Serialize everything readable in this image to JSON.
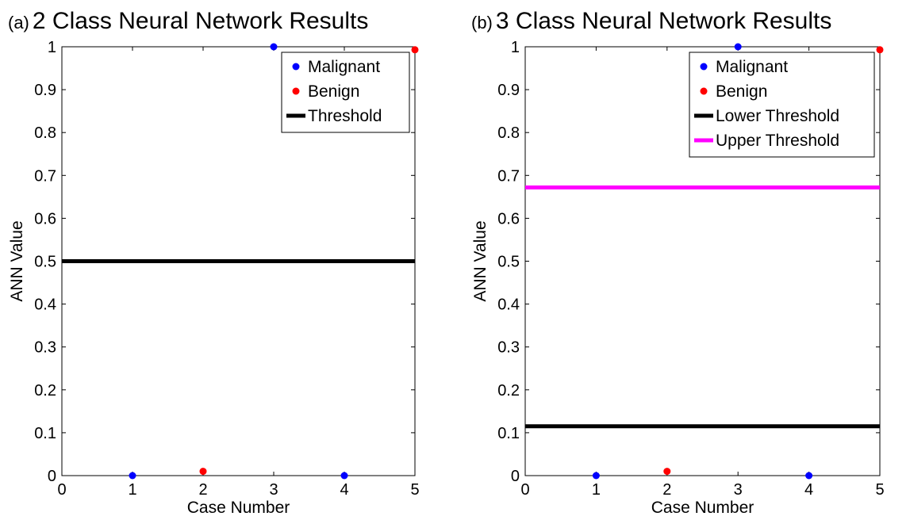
{
  "chart_data": [
    {
      "type": "scatter",
      "panel": "(a)",
      "title": "2 Class Neural Network Results",
      "xlabel": "Case Number",
      "ylabel": "ANN Value",
      "xlim": [
        0,
        5
      ],
      "ylim": [
        0,
        1
      ],
      "xticks": [
        "0",
        "1",
        "2",
        "3",
        "4",
        "5"
      ],
      "yticks": [
        "0",
        "0.1",
        "0.2",
        "0.3",
        "0.4",
        "0.5",
        "0.6",
        "0.7",
        "0.8",
        "0.9",
        "1"
      ],
      "grid": false,
      "legend_position": "top-right",
      "series": [
        {
          "name": "Malignant",
          "kind": "points",
          "color": "#0000ff",
          "x": [
            1,
            3,
            4
          ],
          "y": [
            0.0,
            1.0,
            0.0
          ]
        },
        {
          "name": "Benign",
          "kind": "points",
          "color": "#ff0000",
          "x": [
            2,
            5
          ],
          "y": [
            0.01,
            0.993
          ]
        },
        {
          "name": "Threshold",
          "kind": "hline",
          "color": "#000000",
          "y": 0.5
        }
      ]
    },
    {
      "type": "scatter",
      "panel": "(b)",
      "title": "3 Class Neural Network Results",
      "xlabel": "Case Number",
      "ylabel": "ANN Value",
      "xlim": [
        0,
        5
      ],
      "ylim": [
        0,
        1
      ],
      "xticks": [
        "0",
        "1",
        "2",
        "3",
        "4",
        "5"
      ],
      "yticks": [
        "0",
        "0.1",
        "0.2",
        "0.3",
        "0.4",
        "0.5",
        "0.6",
        "0.7",
        "0.8",
        "0.9",
        "1"
      ],
      "grid": false,
      "legend_position": "top-right",
      "series": [
        {
          "name": "Malignant",
          "kind": "points",
          "color": "#0000ff",
          "x": [
            1,
            3,
            4
          ],
          "y": [
            0.0,
            1.0,
            0.0
          ]
        },
        {
          "name": "Benign",
          "kind": "points",
          "color": "#ff0000",
          "x": [
            2,
            5
          ],
          "y": [
            0.01,
            0.993
          ]
        },
        {
          "name": "Lower Threshold",
          "kind": "hline",
          "color": "#000000",
          "y": 0.115
        },
        {
          "name": "Upper Threshold",
          "kind": "hline",
          "color": "#ff00ff",
          "y": 0.672
        }
      ]
    }
  ]
}
